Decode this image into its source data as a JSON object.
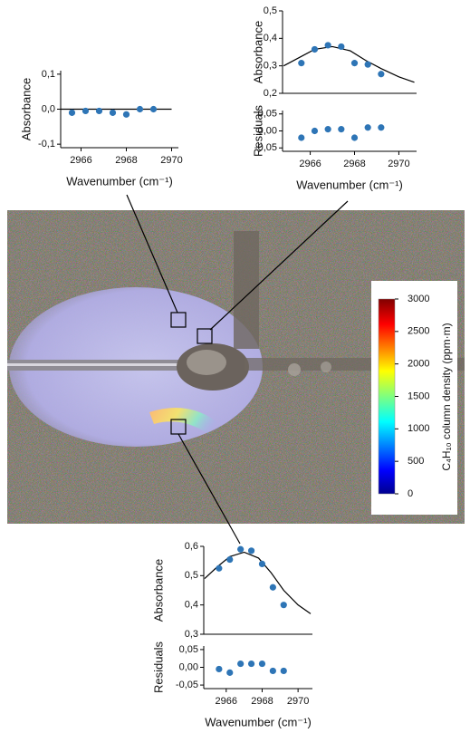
{
  "chart_data": [
    {
      "type": "scatter",
      "y_label": "Absorbance",
      "x_label": "Wavenumber (cm⁻¹)",
      "x": [
        2965.6,
        2966.2,
        2966.8,
        2967.4,
        2968.0,
        2968.6,
        2969.2
      ],
      "series": [
        {
          "color": "#2e75b6",
          "values": [
            -0.01,
            -0.005,
            -0.005,
            -0.01,
            -0.015,
            0.0,
            0.0
          ]
        }
      ],
      "fit": {
        "x": [
          2965.1,
          2970.0
        ],
        "values": [
          0,
          0
        ]
      },
      "xlim": [
        2965.1,
        2970.3
      ],
      "xticks": [
        2966,
        2968,
        2970
      ],
      "ylim": [
        -0.11,
        0.11
      ],
      "yticks": [
        {
          "value": 0.1,
          "label": "0,1"
        },
        {
          "value": 0,
          "label": "0,0"
        },
        {
          "value": -0.1,
          "label": "-0,1"
        }
      ]
    },
    {
      "type": "scatter",
      "y_label": "Absorbance",
      "x": [
        2965.6,
        2966.2,
        2966.8,
        2967.4,
        2968.0,
        2968.6,
        2969.2
      ],
      "series": [
        {
          "color": "#2e75b6",
          "values": [
            0.31,
            0.36,
            0.375,
            0.37,
            0.31,
            0.305,
            0.27
          ]
        }
      ],
      "fit": {
        "x": [
          2964.8,
          2965.5,
          2966.2,
          2967.0,
          2967.8,
          2968.5,
          2969.2,
          2970.0,
          2970.7
        ],
        "values": [
          0.3,
          0.33,
          0.36,
          0.37,
          0.355,
          0.32,
          0.29,
          0.26,
          0.24
        ]
      },
      "xlim": [
        2964.75,
        2970.8
      ],
      "ylim": [
        0.2,
        0.5
      ],
      "yticks": [
        {
          "value": 0.2,
          "label": "0,2"
        },
        {
          "value": 0.3,
          "label": "0,3"
        },
        {
          "value": 0.4,
          "label": "0,4"
        },
        {
          "value": 0.5,
          "label": "0,5"
        }
      ]
    },
    {
      "type": "scatter",
      "y_label": "Residuals",
      "x_label": "Wavenumber (cm⁻¹)",
      "x": [
        2965.6,
        2966.2,
        2966.8,
        2967.4,
        2968.0,
        2968.6,
        2969.2
      ],
      "series": [
        {
          "color": "#2e75b6",
          "values": [
            -0.02,
            0.0,
            0.005,
            0.005,
            -0.02,
            0.01,
            0.01
          ]
        }
      ],
      "xlim": [
        2964.75,
        2970.8
      ],
      "xticks": [
        2966,
        2968,
        2970
      ],
      "ylim": [
        -0.06,
        0.06
      ],
      "yticks": [
        {
          "value": 0.05,
          "label": "0,05"
        },
        {
          "value": 0,
          "label": "0,00"
        },
        {
          "value": -0.05,
          "label": "-0,05"
        }
      ]
    },
    {
      "type": "scatter",
      "y_label": "Absorbance",
      "x": [
        2965.6,
        2966.2,
        2966.8,
        2967.4,
        2968.0,
        2968.6,
        2969.2
      ],
      "series": [
        {
          "color": "#2e75b6",
          "values": [
            0.525,
            0.555,
            0.59,
            0.585,
            0.54,
            0.46,
            0.4
          ]
        }
      ],
      "fit": {
        "x": [
          2964.8,
          2965.5,
          2966.2,
          2967.0,
          2967.8,
          2968.5,
          2969.2,
          2970.0,
          2970.7
        ],
        "values": [
          0.49,
          0.53,
          0.565,
          0.58,
          0.56,
          0.51,
          0.45,
          0.4,
          0.37
        ]
      },
      "xlim": [
        2964.75,
        2970.8
      ],
      "ylim": [
        0.3,
        0.6
      ],
      "yticks": [
        {
          "value": 0.3,
          "label": "0,3"
        },
        {
          "value": 0.4,
          "label": "0,4"
        },
        {
          "value": 0.5,
          "label": "0,5"
        },
        {
          "value": 0.6,
          "label": "0,6"
        }
      ]
    },
    {
      "type": "scatter",
      "y_label": "Residuals",
      "x_label": "Wavenumber (cm⁻¹)",
      "x": [
        2965.6,
        2966.2,
        2966.8,
        2967.4,
        2968.0,
        2968.6,
        2969.2
      ],
      "series": [
        {
          "color": "#2e75b6",
          "values": [
            -0.005,
            -0.015,
            0.01,
            0.01,
            0.01,
            -0.01,
            -0.01
          ]
        }
      ],
      "xlim": [
        2964.75,
        2970.8
      ],
      "xticks": [
        2966,
        2968,
        2970
      ],
      "ylim": [
        -0.06,
        0.06
      ],
      "yticks": [
        {
          "value": 0.05,
          "label": "0,05"
        },
        {
          "value": 0,
          "label": "0,00"
        },
        {
          "value": -0.05,
          "label": "-0,05"
        }
      ]
    }
  ],
  "image": {
    "colorbar": {
      "label": "C₄H₁₀ column density (ppm·m)",
      "lim": [
        0,
        3000
      ],
      "ticks": [
        0,
        500,
        1000,
        1500,
        2000,
        2500,
        3000
      ]
    }
  }
}
